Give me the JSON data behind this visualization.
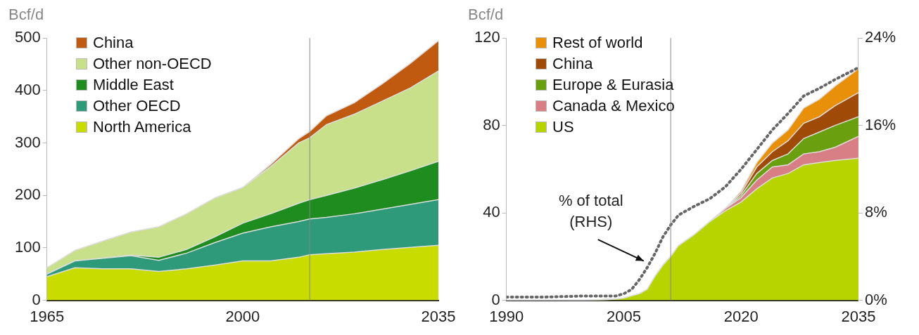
{
  "chart_data": [
    {
      "type": "area",
      "ylabel": "Bcf/d",
      "stacked": true,
      "legend": "top left",
      "grid": false,
      "x": [
        1965,
        1970,
        1975,
        1980,
        1985,
        1990,
        1995,
        2000,
        2005,
        2010,
        2012,
        2015,
        2020,
        2025,
        2030,
        2035
      ],
      "xlim": [
        1965,
        2035
      ],
      "xticks": [
        1965,
        2000,
        2035
      ],
      "ylim": [
        0,
        500
      ],
      "yticks": [
        0,
        100,
        200,
        300,
        400,
        500
      ],
      "ref_lines": [
        {
          "axis": "x",
          "value": 2012,
          "color": "#888888"
        }
      ],
      "series": [
        {
          "name": "North America",
          "color": "#c8dc00",
          "values": [
            45,
            62,
            60,
            60,
            55,
            60,
            67,
            75,
            75,
            82,
            87,
            89,
            92,
            97,
            101,
            105
          ]
        },
        {
          "name": "Other OECD",
          "color": "#2e9a7a",
          "values": [
            5,
            13,
            20,
            25,
            21,
            30,
            43,
            53,
            65,
            68,
            68,
            69,
            73,
            77,
            82,
            87
          ]
        },
        {
          "name": "Middle East",
          "color": "#1e8c1e",
          "values": [
            0,
            0,
            0,
            1,
            6,
            7,
            11,
            19,
            25,
            35,
            37,
            42,
            49,
            56,
            64,
            73
          ]
        },
        {
          "name": "Other non-OECD",
          "color": "#c8e08a",
          "values": [
            12,
            20,
            33,
            44,
            58,
            68,
            74,
            68,
            90,
            115,
            118,
            135,
            141,
            150,
            158,
            172
          ]
        },
        {
          "name": "China",
          "color": "#c05a10",
          "values": [
            0,
            0,
            0,
            0,
            0,
            0,
            0,
            0,
            4,
            8,
            12,
            17,
            22,
            33,
            47,
            58
          ]
        }
      ]
    },
    {
      "type": "area",
      "ylabel": "Bcf/d",
      "stacked": true,
      "legend": "top left",
      "grid": false,
      "x": [
        1990,
        1995,
        2000,
        2004,
        2005,
        2006,
        2007,
        2008,
        2009,
        2010,
        2011,
        2012,
        2014,
        2016,
        2018,
        2020,
        2022,
        2024,
        2026,
        2028,
        2030,
        2032,
        2035
      ],
      "xlim": [
        1990,
        2035
      ],
      "xticks": [
        1990,
        2005,
        2020,
        2035
      ],
      "ylim": [
        0,
        120
      ],
      "yticks": [
        0,
        40,
        80,
        120
      ],
      "y2lim": [
        0,
        24
      ],
      "y2ticks": [
        {
          "value": 0,
          "label": "0%"
        },
        {
          "value": 8,
          "label": "8%"
        },
        {
          "value": 16,
          "label": "16%"
        },
        {
          "value": 24,
          "label": "24%"
        }
      ],
      "ref_lines": [
        {
          "axis": "x",
          "value": 2011,
          "color": "#888888"
        }
      ],
      "annotations": [
        "% of total\n(RHS)"
      ],
      "series": [
        {
          "name": "US",
          "color": "#b8d400",
          "values": [
            0,
            0,
            0,
            0.5,
            1,
            2,
            3,
            5,
            11,
            16,
            20,
            25,
            30,
            36,
            41,
            45,
            51,
            56,
            58,
            62,
            63,
            64,
            65
          ]
        },
        {
          "name": "Canada & Mexico",
          "color": "#d87f85",
          "values": [
            0,
            0,
            0,
            0,
            0,
            0,
            0,
            0,
            0,
            0,
            0,
            0,
            0,
            0,
            1,
            2,
            4,
            5,
            4,
            5,
            5,
            6,
            10
          ]
        },
        {
          "name": "Europe & Eurasia",
          "color": "#6aa010",
          "values": [
            0,
            0,
            0,
            0,
            0,
            0,
            0,
            0,
            0,
            0,
            0,
            0,
            0,
            0,
            0,
            1,
            3,
            3,
            5,
            7,
            9,
            10,
            9
          ]
        },
        {
          "name": "China",
          "color": "#a04a08",
          "values": [
            0,
            0,
            0,
            0,
            0,
            0,
            0,
            0,
            0,
            0,
            0,
            0,
            0,
            0,
            0,
            1,
            3,
            4,
            6,
            7,
            7,
            9,
            11
          ]
        },
        {
          "name": "Rest of world",
          "color": "#e8900a",
          "values": [
            0,
            0,
            0,
            0,
            0,
            0,
            0,
            0,
            0,
            0,
            0,
            0,
            0,
            0,
            0,
            1,
            2,
            4,
            5,
            7,
            8,
            9,
            11
          ]
        },
        {
          "type": "line",
          "axis": "y2",
          "color": "#666666",
          "line_style": "dotted",
          "marker": "none",
          "values": [
            0.3,
            0.3,
            0.4,
            0.4,
            0.6,
            1.0,
            1.9,
            3.0,
            4.3,
            5.8,
            6.9,
            7.8,
            8.6,
            9.3,
            10.4,
            12.0,
            13.8,
            15.6,
            17.1,
            18.7,
            19.4,
            20.2,
            21.3
          ]
        }
      ]
    }
  ]
}
